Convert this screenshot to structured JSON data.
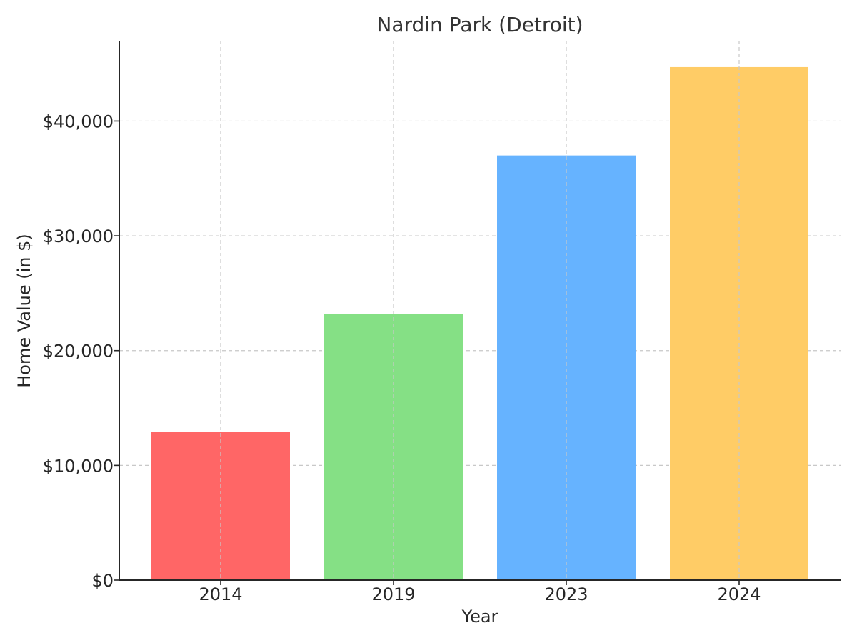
{
  "chart_data": {
    "type": "bar",
    "title": "Nardin Park (Detroit)",
    "xlabel": "Year",
    "ylabel": "Home Value (in $)",
    "categories": [
      "2014",
      "2019",
      "2023",
      "2024"
    ],
    "values": [
      12900,
      23200,
      37000,
      44700
    ],
    "colors": [
      "#ff6666",
      "#85e085",
      "#66b3ff",
      "#ffcc66"
    ],
    "ylim": [
      0,
      47000
    ],
    "yticks": [
      0,
      10000,
      20000,
      30000,
      40000
    ],
    "ytick_labels": [
      "$0",
      "$10,000",
      "$20,000",
      "$30,000",
      "$40,000"
    ],
    "grid": true,
    "legend": "none"
  }
}
